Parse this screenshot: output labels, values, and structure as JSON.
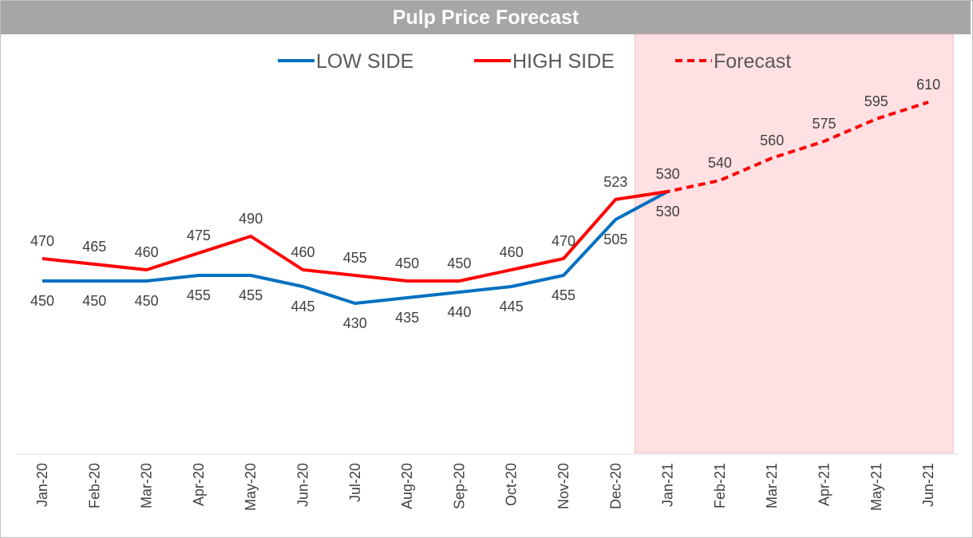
{
  "chart_data": {
    "type": "line",
    "title": "Pulp Price Forecast",
    "categories": [
      "Jan-20",
      "Feb-20",
      "Mar-20",
      "Apr-20",
      "May-20",
      "Jun-20",
      "Jul-20",
      "Aug-20",
      "Sep-20",
      "Oct-20",
      "Nov-20",
      "Dec-20",
      "Jan-21",
      "Feb-21",
      "Mar-21",
      "Apr-21",
      "May-21",
      "Jun-21"
    ],
    "series": [
      {
        "name": "LOW SIDE",
        "color": "#0070c0",
        "style": "solid",
        "values": [
          450,
          450,
          450,
          455,
          455,
          445,
          430,
          435,
          440,
          445,
          455,
          505,
          530,
          null,
          null,
          null,
          null,
          null
        ]
      },
      {
        "name": "HIGH SIDE",
        "color": "#ff0000",
        "style": "solid",
        "values": [
          470,
          465,
          460,
          475,
          490,
          460,
          455,
          450,
          450,
          460,
          470,
          523,
          530,
          null,
          null,
          null,
          null,
          null
        ]
      },
      {
        "name": "Forecast",
        "color": "#ff0000",
        "style": "dashed",
        "values": [
          null,
          null,
          null,
          null,
          null,
          null,
          null,
          null,
          null,
          null,
          null,
          523,
          530,
          540,
          560,
          575,
          595,
          610
        ]
      }
    ],
    "ylim": [
      380,
      610
    ],
    "forecast_region": {
      "from": "Jan-21",
      "to": "Jun-21",
      "color": "#ffe0e3"
    },
    "legend_position": "top",
    "grid": false,
    "xlabel": "",
    "ylabel": ""
  }
}
